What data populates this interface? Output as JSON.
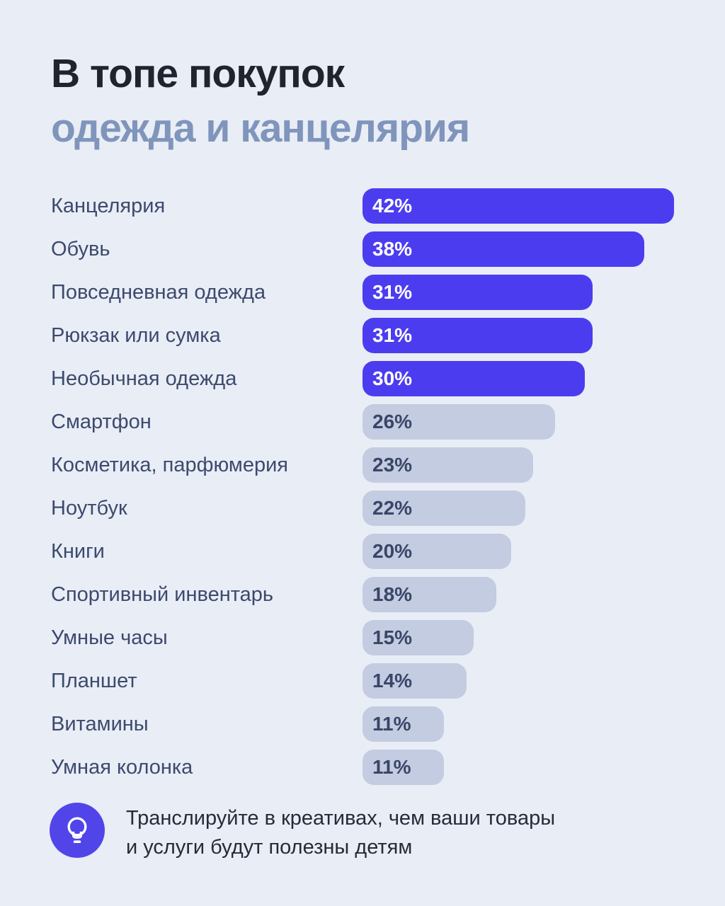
{
  "title": {
    "line1": "В топе покупок",
    "line2": "одежда и канцелярия"
  },
  "chart_data": {
    "type": "bar",
    "orientation": "horizontal",
    "title": "В топе покупок одежда и канцелярия",
    "categories": [
      "Канцелярия",
      "Обувь",
      "Повседневная одежда",
      "Рюкзак или сумка",
      "Необычная одежда",
      "Смартфон",
      "Косметика, парфюмерия",
      "Ноутбук",
      "Книги",
      "Спортивный инвентарь",
      "Умные часы",
      "Планшет",
      "Витамины",
      "Умная колонка"
    ],
    "values": [
      42,
      38,
      31,
      31,
      30,
      26,
      23,
      22,
      20,
      18,
      15,
      14,
      11,
      11
    ],
    "value_suffix": "%",
    "xlim": [
      0,
      42
    ],
    "highlight_threshold": 30,
    "legend": "none",
    "grid": false
  },
  "footer": {
    "icon": "lightbulb-icon",
    "note_line1": "Транслируйте в креативах, чем ваши товары",
    "note_line2": "и услуги будут полезны детям"
  },
  "colors": {
    "background": "#e9edf5",
    "title": "#20242e",
    "subtitle": "#8095bc",
    "category_label": "#3c4a6e",
    "bar_highlight": "#4b3def",
    "bar_muted": "#c3cce0",
    "bar_value_on_highlight": "#ffffff",
    "bar_value_on_muted": "#3a4668",
    "footer_icon_bg": "#5145e9",
    "footer_text": "#252b39"
  }
}
